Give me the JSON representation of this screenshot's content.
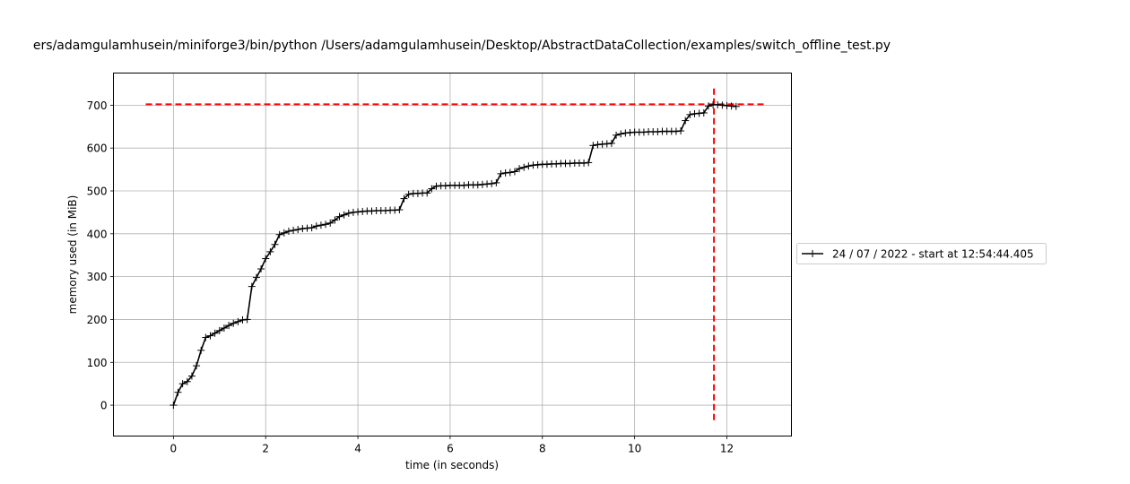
{
  "chart_data": {
    "type": "line",
    "title": "ers/adamgulamhusein/miniforge3/bin/python /Users/adamgulamhusein/Desktop/AbstractDataCollection/examples/switch_offline_test.py",
    "xlabel": "time (in seconds)",
    "ylabel": "memory used (in MiB)",
    "xlim": [
      -1.3,
      13.4
    ],
    "ylim": [
      -72,
      775
    ],
    "xticks": [
      0,
      2,
      4,
      6,
      8,
      10,
      12
    ],
    "yticks": [
      0,
      100,
      200,
      300,
      400,
      500,
      600,
      700
    ],
    "grid": true,
    "legend_position": "right",
    "series": [
      {
        "name": "24 / 07 / 2022 - start at 12:54:44.405",
        "color": "#000000",
        "marker": "+",
        "points": [
          [
            0.0,
            0
          ],
          [
            0.1,
            30
          ],
          [
            0.2,
            50
          ],
          [
            0.3,
            55
          ],
          [
            0.4,
            68
          ],
          [
            0.5,
            92
          ],
          [
            0.6,
            128
          ],
          [
            0.7,
            158
          ],
          [
            0.8,
            162
          ],
          [
            0.9,
            168
          ],
          [
            1.0,
            174
          ],
          [
            1.1,
            180
          ],
          [
            1.2,
            186
          ],
          [
            1.3,
            191
          ],
          [
            1.4,
            195
          ],
          [
            1.5,
            199
          ],
          [
            1.6,
            200
          ],
          [
            1.7,
            277
          ],
          [
            1.8,
            298
          ],
          [
            1.9,
            318
          ],
          [
            2.0,
            342
          ],
          [
            2.1,
            358
          ],
          [
            2.2,
            375
          ],
          [
            2.3,
            398
          ],
          [
            2.4,
            402
          ],
          [
            2.5,
            406
          ],
          [
            2.6,
            408
          ],
          [
            2.7,
            410
          ],
          [
            2.8,
            412
          ],
          [
            2.9,
            413
          ],
          [
            3.0,
            414
          ],
          [
            3.1,
            418
          ],
          [
            3.2,
            420
          ],
          [
            3.3,
            422
          ],
          [
            3.4,
            425
          ],
          [
            3.5,
            432
          ],
          [
            3.6,
            440
          ],
          [
            3.7,
            444
          ],
          [
            3.8,
            448
          ],
          [
            3.9,
            450
          ],
          [
            4.0,
            451
          ],
          [
            4.1,
            452
          ],
          [
            4.2,
            453
          ],
          [
            4.3,
            453
          ],
          [
            4.4,
            454
          ],
          [
            4.5,
            454
          ],
          [
            4.6,
            454
          ],
          [
            4.7,
            455
          ],
          [
            4.8,
            455
          ],
          [
            4.9,
            456
          ],
          [
            5.0,
            482
          ],
          [
            5.1,
            492
          ],
          [
            5.2,
            494
          ],
          [
            5.3,
            494
          ],
          [
            5.4,
            495
          ],
          [
            5.5,
            495
          ],
          [
            5.6,
            505
          ],
          [
            5.7,
            511
          ],
          [
            5.8,
            512
          ],
          [
            5.9,
            512
          ],
          [
            6.0,
            513
          ],
          [
            6.1,
            513
          ],
          [
            6.2,
            513
          ],
          [
            6.3,
            513
          ],
          [
            6.4,
            514
          ],
          [
            6.5,
            514
          ],
          [
            6.6,
            514
          ],
          [
            6.7,
            515
          ],
          [
            6.8,
            516
          ],
          [
            6.9,
            517
          ],
          [
            7.0,
            519
          ],
          [
            7.1,
            540
          ],
          [
            7.2,
            542
          ],
          [
            7.3,
            543
          ],
          [
            7.4,
            545
          ],
          [
            7.5,
            552
          ],
          [
            7.6,
            555
          ],
          [
            7.7,
            558
          ],
          [
            7.8,
            560
          ],
          [
            7.9,
            561
          ],
          [
            8.0,
            562
          ],
          [
            8.1,
            562
          ],
          [
            8.2,
            563
          ],
          [
            8.3,
            563
          ],
          [
            8.4,
            564
          ],
          [
            8.5,
            564
          ],
          [
            8.6,
            564
          ],
          [
            8.7,
            565
          ],
          [
            8.8,
            565
          ],
          [
            8.9,
            565
          ],
          [
            9.0,
            566
          ],
          [
            9.1,
            606
          ],
          [
            9.2,
            608
          ],
          [
            9.3,
            609
          ],
          [
            9.4,
            610
          ],
          [
            9.5,
            611
          ],
          [
            9.6,
            630
          ],
          [
            9.7,
            633
          ],
          [
            9.8,
            635
          ],
          [
            9.9,
            636
          ],
          [
            10.0,
            637
          ],
          [
            10.1,
            637
          ],
          [
            10.2,
            637
          ],
          [
            10.3,
            638
          ],
          [
            10.4,
            638
          ],
          [
            10.5,
            638
          ],
          [
            10.6,
            639
          ],
          [
            10.7,
            639
          ],
          [
            10.8,
            639
          ],
          [
            10.9,
            639
          ],
          [
            11.0,
            640
          ],
          [
            11.1,
            664
          ],
          [
            11.2,
            678
          ],
          [
            11.3,
            680
          ],
          [
            11.4,
            681
          ],
          [
            11.5,
            682
          ],
          [
            11.6,
            698
          ],
          [
            11.7,
            701
          ],
          [
            11.8,
            701
          ],
          [
            11.9,
            700
          ],
          [
            12.0,
            699
          ],
          [
            12.1,
            698
          ],
          [
            12.2,
            697
          ]
        ]
      }
    ],
    "reference_lines": [
      {
        "orientation": "horizontal",
        "value": 702,
        "from": -0.6,
        "to": 12.8,
        "color": "#ff0000",
        "style": "dashed"
      },
      {
        "orientation": "vertical",
        "value": 11.72,
        "from": -35,
        "to": 740,
        "color": "#ff0000",
        "style": "dashed"
      }
    ]
  }
}
